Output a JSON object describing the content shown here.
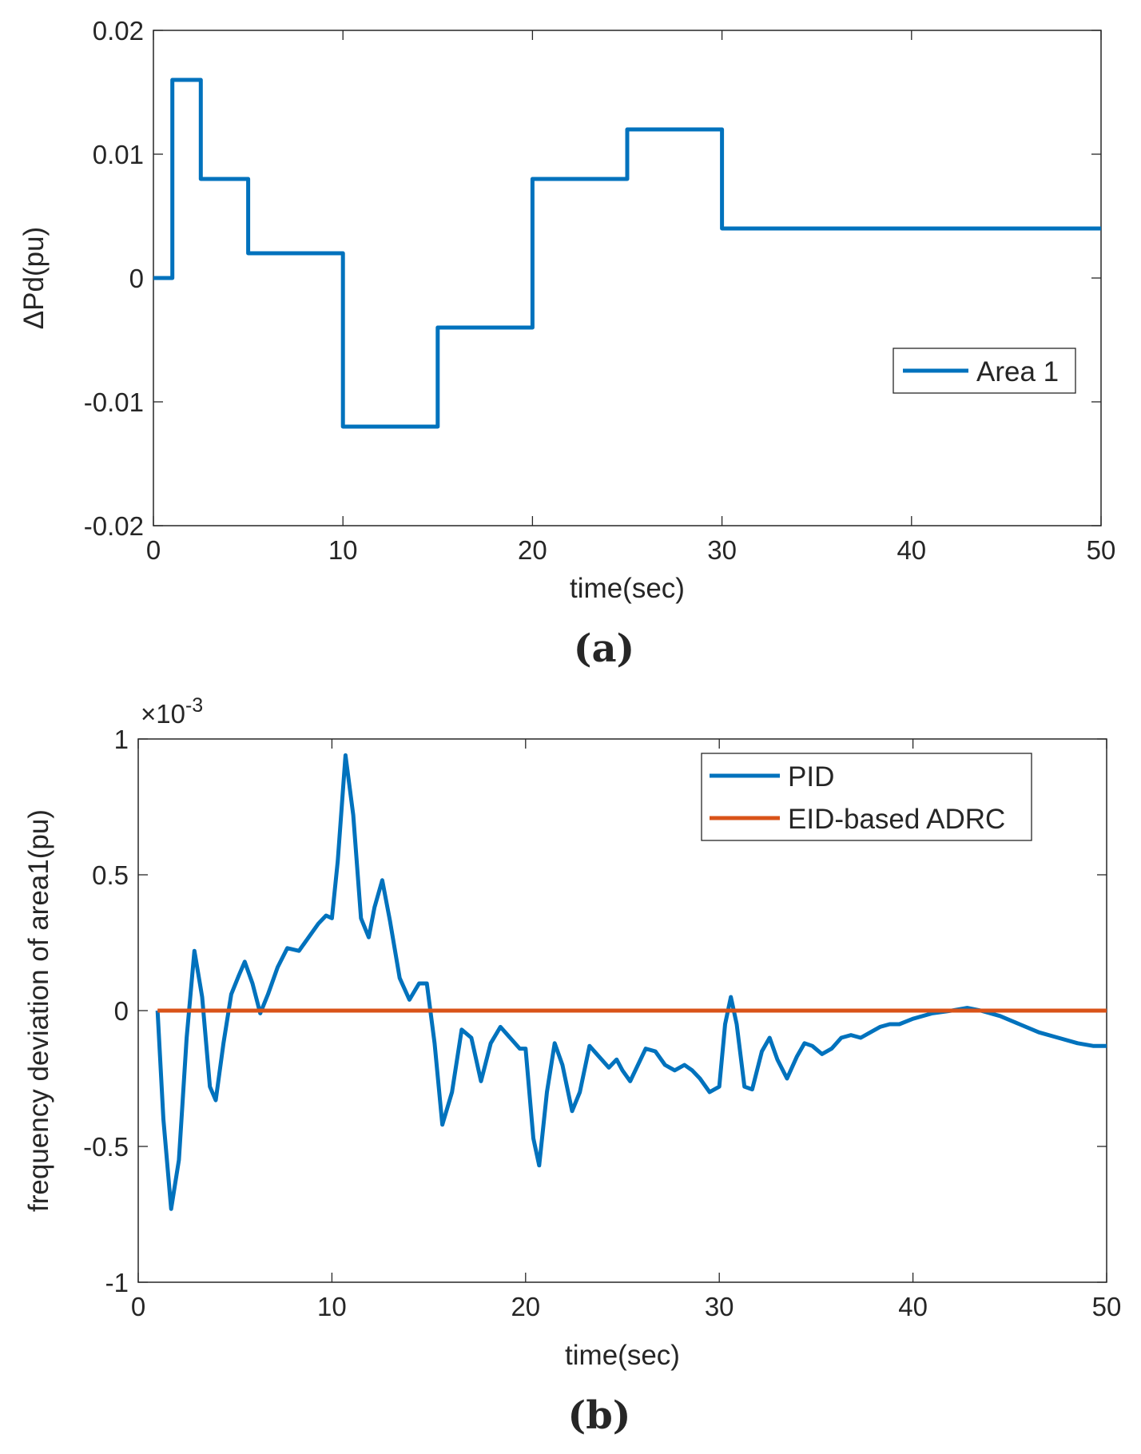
{
  "chart_data": [
    {
      "type": "line",
      "panel_label": "a",
      "title": "",
      "xlabel": "time(sec)",
      "ylabel": "ΔPd(pu)",
      "xlim": [
        0,
        50
      ],
      "ylim": [
        -0.02,
        0.02
      ],
      "xticks": [
        0,
        10,
        20,
        30,
        40,
        50
      ],
      "xtick_labels": [
        "0",
        "10",
        "20",
        "30",
        "40",
        "50"
      ],
      "yticks": [
        -0.02,
        -0.01,
        0,
        0.01,
        0.02
      ],
      "ytick_labels": [
        "-0.02",
        "-0.01",
        "0",
        "0.01",
        "0.02"
      ],
      "grid": false,
      "legend": "center-right",
      "series": [
        {
          "name": "Area 1",
          "color": "#0072BD",
          "x": [
            0,
            1,
            1,
            2.5,
            2.5,
            5,
            5,
            10,
            10,
            15,
            15,
            20,
            20,
            25,
            25,
            30,
            30,
            50
          ],
          "y": [
            0,
            0,
            0.016,
            0.016,
            0.008,
            0.008,
            0.002,
            0.002,
            -0.012,
            -0.012,
            -0.004,
            -0.004,
            0.008,
            0.008,
            0.012,
            0.012,
            0.004,
            0.004
          ]
        }
      ]
    },
    {
      "type": "line",
      "panel_label": "b",
      "title": "",
      "xlabel": "time(sec)",
      "ylabel": "frequency deviation of area1(pu)",
      "exponent_label": "×10",
      "exponent_power": "-3",
      "xlim": [
        0,
        50
      ],
      "ylim": [
        -1,
        1
      ],
      "xticks": [
        0,
        10,
        20,
        30,
        40,
        50
      ],
      "xtick_labels": [
        "0",
        "10",
        "20",
        "30",
        "40",
        "50"
      ],
      "yticks": [
        -1,
        -0.5,
        0,
        0.5,
        1
      ],
      "ytick_labels": [
        "-1",
        "-0.5",
        "0",
        "0.5",
        "1"
      ],
      "grid": false,
      "legend": "top-right",
      "series": [
        {
          "name": "PID",
          "color": "#0072BD",
          "x": [
            1,
            1.3,
            1.7,
            2.1,
            2.5,
            2.9,
            3.3,
            3.7,
            4.0,
            4.4,
            4.8,
            5.2,
            5.5,
            5.9,
            6.3,
            6.7,
            7.2,
            7.7,
            8.3,
            8.8,
            9.3,
            9.7,
            10.0,
            10.3,
            10.7,
            11.1,
            11.5,
            11.9,
            12.2,
            12.6,
            13.0,
            13.5,
            14.0,
            14.5,
            14.9,
            15.3,
            15.7,
            16.2,
            16.7,
            17.2,
            17.7,
            18.2,
            18.7,
            19.2,
            19.7,
            20.0,
            20.4,
            20.7,
            21.1,
            21.5,
            21.9,
            22.4,
            22.8,
            23.3,
            23.8,
            24.3,
            24.7,
            25.0,
            25.4,
            25.8,
            26.2,
            26.7,
            27.2,
            27.7,
            28.2,
            28.6,
            29.0,
            29.5,
            30.0,
            30.3,
            30.6,
            30.9,
            31.3,
            31.7,
            32.2,
            32.6,
            33.0,
            33.5,
            34.0,
            34.4,
            34.8,
            35.3,
            35.8,
            36.3,
            36.8,
            37.3,
            37.8,
            38.3,
            38.8,
            39.3,
            40.0,
            41.0,
            42.0,
            42.8,
            43.5,
            44.5,
            45.5,
            46.5,
            47.5,
            48.5,
            49.3,
            50.0
          ],
          "y": [
            0,
            -0.4,
            -0.73,
            -0.55,
            -0.1,
            0.22,
            0.05,
            -0.28,
            -0.33,
            -0.12,
            0.06,
            0.13,
            0.18,
            0.1,
            -0.01,
            0.06,
            0.16,
            0.23,
            0.22,
            0.27,
            0.32,
            0.35,
            0.34,
            0.55,
            0.94,
            0.72,
            0.34,
            0.27,
            0.38,
            0.48,
            0.33,
            0.12,
            0.04,
            0.1,
            0.1,
            -0.12,
            -0.42,
            -0.3,
            -0.07,
            -0.1,
            -0.26,
            -0.12,
            -0.06,
            -0.1,
            -0.14,
            -0.14,
            -0.47,
            -0.57,
            -0.3,
            -0.12,
            -0.2,
            -0.37,
            -0.3,
            -0.13,
            -0.17,
            -0.21,
            -0.18,
            -0.22,
            -0.26,
            -0.2,
            -0.14,
            -0.15,
            -0.2,
            -0.22,
            -0.2,
            -0.22,
            -0.25,
            -0.3,
            -0.28,
            -0.05,
            0.05,
            -0.05,
            -0.28,
            -0.29,
            -0.15,
            -0.1,
            -0.18,
            -0.25,
            -0.17,
            -0.12,
            -0.13,
            -0.16,
            -0.14,
            -0.1,
            -0.09,
            -0.1,
            -0.08,
            -0.06,
            -0.05,
            -0.05,
            -0.03,
            -0.01,
            0.0,
            0.01,
            0.0,
            -0.02,
            -0.05,
            -0.08,
            -0.1,
            -0.12,
            -0.13,
            -0.13
          ]
        },
        {
          "name": "EID-based ADRC",
          "color": "#D95319",
          "x": [
            1,
            50
          ],
          "y": [
            0,
            0
          ]
        }
      ]
    }
  ]
}
